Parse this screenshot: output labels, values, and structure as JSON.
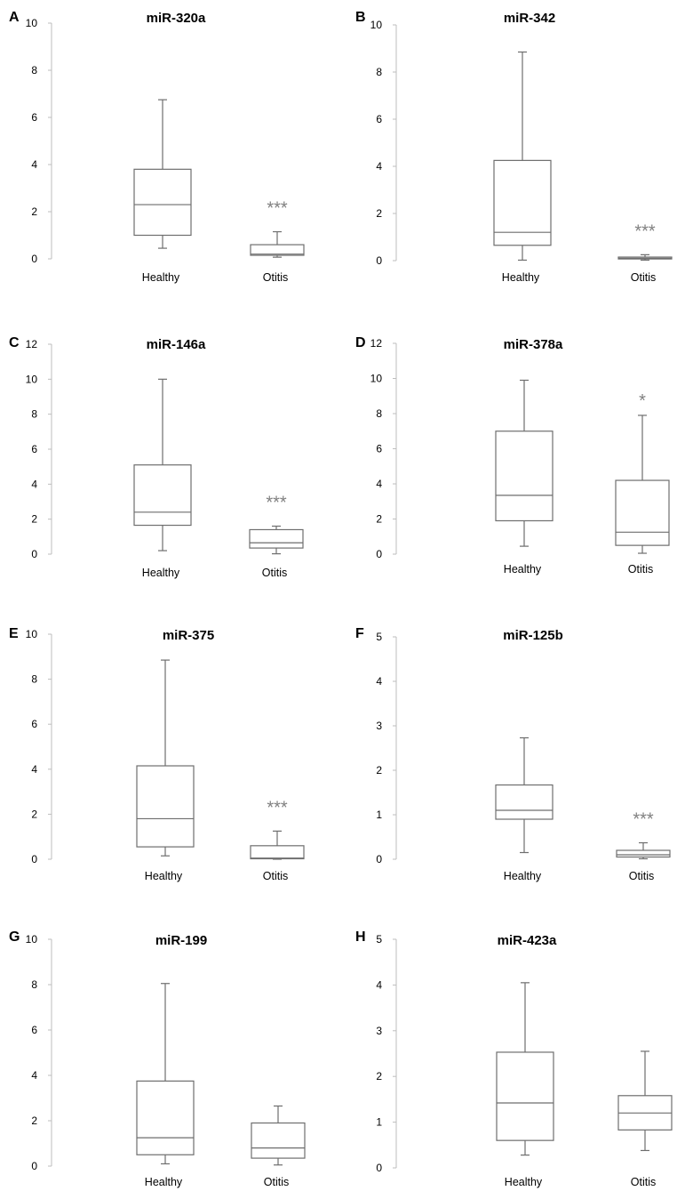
{
  "chart_data": [
    {
      "panel": "A",
      "type": "box",
      "title": "miR-320a",
      "ylim": [
        0,
        10
      ],
      "yticks": [
        0,
        2,
        4,
        6,
        8,
        10
      ],
      "categories": [
        "Healthy",
        "Otitis"
      ],
      "boxes": [
        {
          "name": "Healthy",
          "min": 0.45,
          "q1": 1.0,
          "median": 2.3,
          "q3": 3.8,
          "max": 6.75,
          "sig": ""
        },
        {
          "name": "Otitis",
          "min": 0.07,
          "q1": 0.15,
          "median": 0.2,
          "q3": 0.6,
          "max": 1.15,
          "sig": "***"
        }
      ]
    },
    {
      "panel": "B",
      "type": "box",
      "title": "miR-342",
      "ylim": [
        0,
        10
      ],
      "yticks": [
        0,
        2,
        4,
        6,
        8,
        10
      ],
      "categories": [
        "Healthy",
        "Otitis"
      ],
      "boxes": [
        {
          "name": "Healthy",
          "min": 0.02,
          "q1": 0.65,
          "median": 1.2,
          "q3": 4.25,
          "max": 8.85,
          "sig": ""
        },
        {
          "name": "Otitis",
          "min": 0.02,
          "q1": 0.07,
          "median": 0.1,
          "q3": 0.15,
          "max": 0.25,
          "sig": "***"
        }
      ]
    },
    {
      "panel": "C",
      "type": "box",
      "title": "miR-146a",
      "ylim": [
        0,
        12
      ],
      "yticks": [
        0,
        2,
        4,
        6,
        8,
        10,
        12
      ],
      "categories": [
        "Healthy",
        "Otitis"
      ],
      "boxes": [
        {
          "name": "Healthy",
          "min": 0.2,
          "q1": 1.65,
          "median": 2.4,
          "q3": 5.1,
          "max": 10.0,
          "sig": ""
        },
        {
          "name": "Otitis",
          "min": 0.02,
          "q1": 0.35,
          "median": 0.65,
          "q3": 1.4,
          "max": 1.6,
          "sig": "***"
        }
      ]
    },
    {
      "panel": "D",
      "type": "box",
      "title": "miR-378a",
      "ylim": [
        0,
        12
      ],
      "yticks": [
        0,
        2,
        4,
        6,
        8,
        10,
        12
      ],
      "categories": [
        "Healthy",
        "Otitis"
      ],
      "boxes": [
        {
          "name": "Healthy",
          "min": 0.45,
          "q1": 1.9,
          "median": 3.35,
          "q3": 7.0,
          "max": 9.9,
          "sig": ""
        },
        {
          "name": "Otitis",
          "min": 0.05,
          "q1": 0.5,
          "median": 1.25,
          "q3": 4.2,
          "max": 7.9,
          "sig": "*"
        }
      ]
    },
    {
      "panel": "E",
      "type": "box",
      "title": "miR-375",
      "ylim": [
        0,
        10
      ],
      "yticks": [
        0,
        2,
        4,
        6,
        8,
        10
      ],
      "categories": [
        "Healthy",
        "Otitis"
      ],
      "boxes": [
        {
          "name": "Healthy",
          "min": 0.15,
          "q1": 0.55,
          "median": 1.8,
          "q3": 4.15,
          "max": 8.85,
          "sig": ""
        },
        {
          "name": "Otitis",
          "min": 0.0,
          "q1": 0.02,
          "median": 0.05,
          "q3": 0.6,
          "max": 1.25,
          "sig": "***"
        }
      ]
    },
    {
      "panel": "F",
      "type": "box",
      "title": "miR-125b",
      "ylim": [
        0,
        5
      ],
      "yticks": [
        0,
        1,
        2,
        3,
        4,
        5
      ],
      "categories": [
        "Healthy",
        "Otitis"
      ],
      "boxes": [
        {
          "name": "Healthy",
          "min": 0.15,
          "q1": 0.9,
          "median": 1.1,
          "q3": 1.67,
          "max": 2.73,
          "sig": ""
        },
        {
          "name": "Otitis",
          "min": 0.01,
          "q1": 0.05,
          "median": 0.1,
          "q3": 0.2,
          "max": 0.37,
          "sig": "***"
        }
      ]
    },
    {
      "panel": "G",
      "type": "box",
      "title": "miR-199",
      "ylim": [
        0,
        10
      ],
      "yticks": [
        0,
        2,
        4,
        6,
        8,
        10
      ],
      "categories": [
        "Healthy",
        "Otitis"
      ],
      "boxes": [
        {
          "name": "Healthy",
          "min": 0.1,
          "q1": 0.5,
          "median": 1.25,
          "q3": 3.75,
          "max": 8.05,
          "sig": ""
        },
        {
          "name": "Otitis",
          "min": 0.05,
          "q1": 0.35,
          "median": 0.8,
          "q3": 1.9,
          "max": 2.65,
          "sig": ""
        }
      ]
    },
    {
      "panel": "H",
      "type": "box",
      "title": "miR-423a",
      "ylim": [
        0,
        5
      ],
      "yticks": [
        0,
        1,
        2,
        3,
        4,
        5
      ],
      "categories": [
        "Healthy",
        "Otitis"
      ],
      "boxes": [
        {
          "name": "Healthy",
          "min": 0.28,
          "q1": 0.6,
          "median": 1.42,
          "q3": 2.53,
          "max": 4.05,
          "sig": ""
        },
        {
          "name": "Otitis",
          "min": 0.38,
          "q1": 0.83,
          "median": 1.2,
          "q3": 1.58,
          "max": 2.55,
          "sig": ""
        }
      ]
    }
  ]
}
